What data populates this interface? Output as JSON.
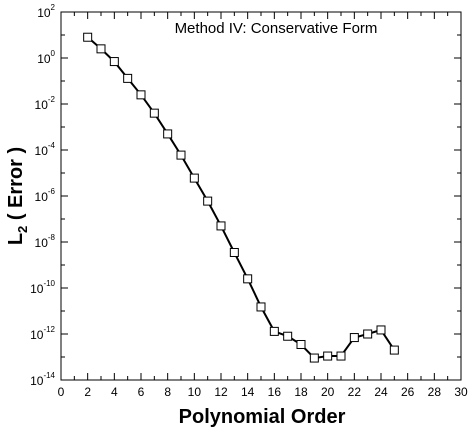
{
  "chart_data": {
    "type": "line",
    "title": "Method IV: Conservative Form",
    "xlabel": "Polynomial Order",
    "ylabel_main": "L",
    "ylabel_sub": "2",
    "ylabel_rest": " ( Error )",
    "xlim": [
      0,
      30
    ],
    "ylim": [
      1e-14,
      100
    ],
    "yscale": "log",
    "grid": false,
    "x_ticks": [
      0,
      2,
      4,
      6,
      8,
      10,
      12,
      14,
      16,
      18,
      20,
      22,
      24,
      26,
      28,
      30
    ],
    "x_tick_labels": [
      "0",
      "2",
      "4",
      "6",
      "8",
      "10",
      "12",
      "14",
      "16",
      "18",
      "20",
      "22",
      "24",
      "26",
      "28",
      "30"
    ],
    "y_ticks": [
      {
        "value": 100,
        "base": "10",
        "exp": "2"
      },
      {
        "value": 1,
        "base": "10",
        "exp": "0"
      },
      {
        "value": 0.01,
        "base": "10",
        "exp": "-2"
      },
      {
        "value": 0.0001,
        "base": "10",
        "exp": "-4"
      },
      {
        "value": 1e-06,
        "base": "10",
        "exp": "-6"
      },
      {
        "value": 1e-08,
        "base": "10",
        "exp": "-8"
      },
      {
        "value": 1e-10,
        "base": "10",
        "exp": "-10"
      },
      {
        "value": 1e-12,
        "base": "10",
        "exp": "-12"
      },
      {
        "value": 1e-14,
        "base": "10",
        "exp": "-14"
      }
    ],
    "series": [
      {
        "marker": "open-square",
        "x": [
          2,
          3,
          4,
          5,
          6,
          7,
          8,
          9,
          10,
          11,
          12,
          13,
          14,
          15,
          16,
          17,
          18,
          19,
          20,
          21,
          22,
          23,
          24,
          25
        ],
        "y": [
          8,
          2.5,
          0.7,
          0.13,
          0.025,
          0.004,
          0.0005,
          6e-05,
          6e-06,
          6e-07,
          5e-08,
          3.5e-09,
          2.5e-10,
          1.5e-11,
          1.3e-12,
          8e-13,
          3.5e-13,
          9e-14,
          1.1e-13,
          1.1e-13,
          7e-13,
          1e-12,
          1.5e-12,
          2e-13
        ]
      }
    ]
  }
}
